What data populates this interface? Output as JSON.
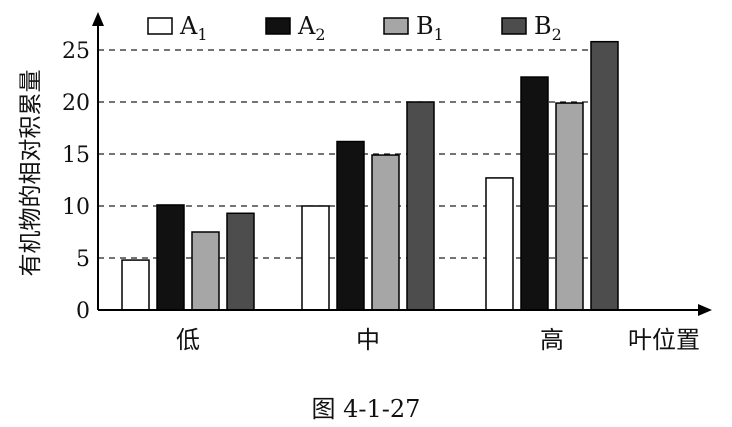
{
  "chart_data": {
    "type": "bar",
    "categories": [
      "低",
      "中",
      "高"
    ],
    "xlabel": "叶位置",
    "ylabel": "有机物的相对积累量",
    "ylim": [
      0,
      28
    ],
    "yticks": [
      0,
      5,
      10,
      15,
      20,
      25
    ],
    "grid": "dashed horizontal at ticks",
    "legend_position": "top",
    "caption": "图 4-1-27",
    "series": [
      {
        "name": "A",
        "sub": "1",
        "color": "#ffffff",
        "values": [
          4.8,
          10.0,
          12.7
        ]
      },
      {
        "name": "A",
        "sub": "2",
        "color": "#111111",
        "values": [
          10.1,
          16.2,
          22.4
        ]
      },
      {
        "name": "B",
        "sub": "1",
        "color": "#a6a6a6",
        "values": [
          7.5,
          14.9,
          19.9
        ]
      },
      {
        "name": "B",
        "sub": "2",
        "color": "#4d4d4d",
        "values": [
          9.3,
          20.0,
          25.8
        ]
      }
    ]
  }
}
